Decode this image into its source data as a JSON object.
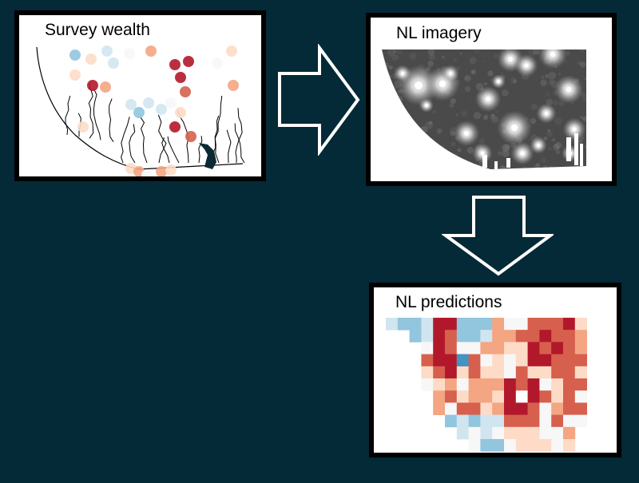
{
  "panels": {
    "survey": {
      "title": "Survey wealth"
    },
    "imagery": {
      "title": "NL imagery"
    },
    "predictions": {
      "title": "NL predictions"
    }
  },
  "colors": {
    "background": "#032a36",
    "arrow_fill": "#032a36",
    "arrow_stroke": "#ffffff",
    "wealth_scale": [
      "#b2182b",
      "#d6604d",
      "#f4a582",
      "#fddbc7",
      "#f7f7f7",
      "#d1e5f0",
      "#92c5de",
      "#4393c3"
    ]
  },
  "arrows": [
    "right-arrow",
    "down-arrow"
  ]
}
